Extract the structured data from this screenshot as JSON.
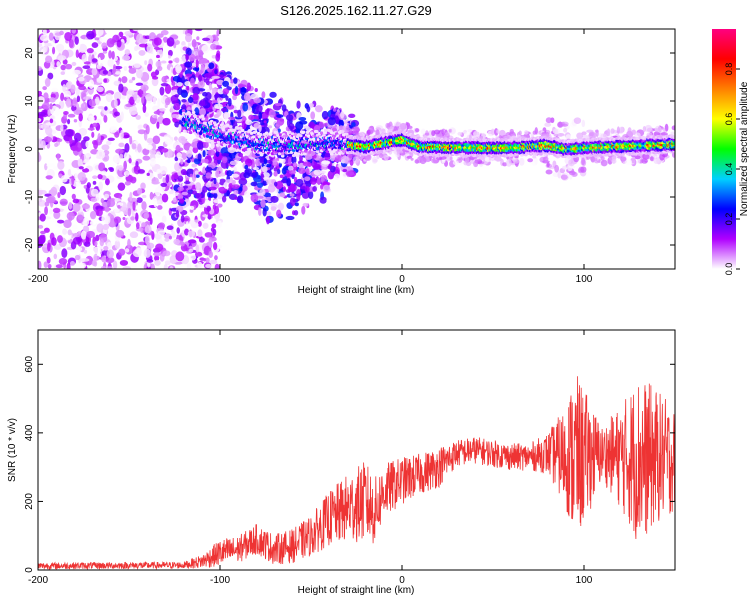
{
  "figure": {
    "title": "S126.2025.162.11.27.G29"
  },
  "chart_data": [
    {
      "type": "heatmap",
      "xlabel": "Height of straight line (km)",
      "ylabel": "Frequency (Hz)",
      "xlim": [
        -200,
        150
      ],
      "ylim": [
        -25,
        25
      ],
      "x_ticks": [
        -200,
        -100,
        0,
        100
      ],
      "y_ticks": [
        -20,
        -10,
        0,
        10,
        20
      ],
      "grid": false,
      "colorbar": {
        "label": "Normalized spectral amplitude",
        "range": [
          0,
          0.96
        ],
        "ticks": [
          "0.0",
          "0.2",
          "0.4",
          "0.6",
          "0.8"
        ],
        "colormap": [
          "#ffffff",
          "#b000ff",
          "#0000ff",
          "#00d0ff",
          "#00ff00",
          "#ffff00",
          "#ff8000",
          "#ff0000",
          "#ff0080"
        ]
      },
      "structure": {
        "noise_region_x": [
          -200,
          -110
        ],
        "ridge_center_hz": [
          {
            "x": -120,
            "f": 6
          },
          {
            "x": -100,
            "f": 3
          },
          {
            "x": -80,
            "f": 1
          },
          {
            "x": -60,
            "f": 1
          },
          {
            "x": -40,
            "f": 1.5
          },
          {
            "x": -20,
            "f": 0.5
          },
          {
            "x": 0,
            "f": 2
          },
          {
            "x": 10,
            "f": 0.5
          },
          {
            "x": 40,
            "f": 0.3
          },
          {
            "x": 60,
            "f": 0.3
          },
          {
            "x": 80,
            "f": 0.8
          },
          {
            "x": 90,
            "f": 0
          },
          {
            "x": 100,
            "f": 0.3
          },
          {
            "x": 150,
            "f": 1
          }
        ]
      }
    },
    {
      "type": "line",
      "xlabel": "Height of straight line (km)",
      "ylabel": "SNR (10 * v/v)",
      "xlim": [
        -200,
        150
      ],
      "ylim": [
        0,
        700
      ],
      "x_ticks": [
        -200,
        -100,
        0,
        100
      ],
      "y_ticks": [
        0,
        200,
        400,
        600
      ],
      "grid": false,
      "series": [
        {
          "color": "#ee3333",
          "envelope": [
            {
              "x": -200,
              "mean": 12,
              "amp": 10
            },
            {
              "x": -120,
              "mean": 14,
              "amp": 10
            },
            {
              "x": -110,
              "mean": 25,
              "amp": 20
            },
            {
              "x": -100,
              "mean": 50,
              "amp": 40
            },
            {
              "x": -90,
              "mean": 60,
              "amp": 40
            },
            {
              "x": -80,
              "mean": 90,
              "amp": 45
            },
            {
              "x": -70,
              "mean": 60,
              "amp": 45
            },
            {
              "x": -60,
              "mean": 70,
              "amp": 50
            },
            {
              "x": -50,
              "mean": 100,
              "amp": 60
            },
            {
              "x": -40,
              "mean": 150,
              "amp": 80
            },
            {
              "x": -30,
              "mean": 180,
              "amp": 100
            },
            {
              "x": -20,
              "mean": 200,
              "amp": 120
            },
            {
              "x": -15,
              "mean": 170,
              "amp": 100
            },
            {
              "x": -10,
              "mean": 230,
              "amp": 80
            },
            {
              "x": 0,
              "mean": 260,
              "amp": 70
            },
            {
              "x": 10,
              "mean": 280,
              "amp": 60
            },
            {
              "x": 20,
              "mean": 300,
              "amp": 60
            },
            {
              "x": 30,
              "mean": 340,
              "amp": 40
            },
            {
              "x": 40,
              "mean": 350,
              "amp": 40
            },
            {
              "x": 50,
              "mean": 340,
              "amp": 40
            },
            {
              "x": 60,
              "mean": 330,
              "amp": 40
            },
            {
              "x": 70,
              "mean": 330,
              "amp": 40
            },
            {
              "x": 80,
              "mean": 340,
              "amp": 60
            },
            {
              "x": 90,
              "mean": 330,
              "amp": 150
            },
            {
              "x": 95,
              "mean": 330,
              "amp": 250
            },
            {
              "x": 100,
              "mean": 330,
              "amp": 200
            },
            {
              "x": 110,
              "mean": 340,
              "amp": 80
            },
            {
              "x": 120,
              "mean": 330,
              "amp": 150
            },
            {
              "x": 130,
              "mean": 320,
              "amp": 250
            },
            {
              "x": 140,
              "mean": 330,
              "amp": 200
            },
            {
              "x": 150,
              "mean": 320,
              "amp": 150
            }
          ]
        }
      ]
    }
  ]
}
